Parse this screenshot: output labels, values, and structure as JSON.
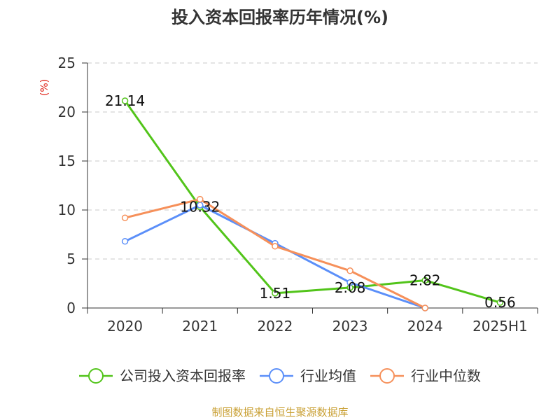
{
  "chart_data": {
    "type": "line",
    "title": "投入资本回报率历年情况(%)",
    "ylabel": "(%)",
    "xlabel": "",
    "categories": [
      "2020",
      "2021",
      "2022",
      "2023",
      "2024",
      "2025H1"
    ],
    "ylim": [
      0,
      25
    ],
    "yticks": [
      0,
      5,
      10,
      15,
      20,
      25
    ],
    "grid": "horizontal dashed",
    "legend_position": "bottom",
    "series": [
      {
        "name": "公司投入资本回报率",
        "color": "#52c41a",
        "values": [
          21.14,
          10.32,
          1.51,
          2.08,
          2.82,
          0.56
        ],
        "labels": [
          "21.14",
          "10.32",
          "1.51",
          "2.08",
          "2.82",
          "0.56"
        ]
      },
      {
        "name": "行业均值",
        "color": "#5b8ff9",
        "values": [
          6.8,
          10.5,
          6.6,
          2.6,
          0.0,
          null
        ]
      },
      {
        "name": "行业中位数",
        "color": "#f6905a",
        "values": [
          9.2,
          11.1,
          6.3,
          3.8,
          0.0,
          null
        ]
      }
    ]
  },
  "footer": {
    "source": "制图数据来自恒生聚源数据库"
  }
}
